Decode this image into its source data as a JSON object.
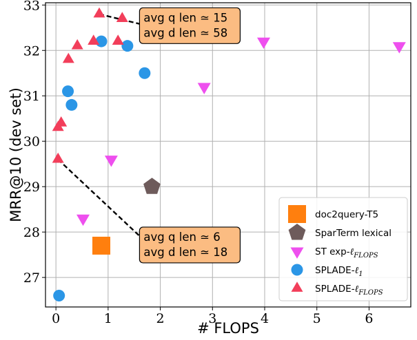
{
  "chart_data": {
    "type": "scatter",
    "xlabel": "# FLOPS",
    "ylabel": "MRR@10 (dev set)",
    "xlim": [
      -0.2,
      6.8
    ],
    "ylim": [
      26.35,
      33.05
    ],
    "xticks": [
      "0",
      "1",
      "2",
      "3",
      "4",
      "5",
      "6"
    ],
    "yticks": [
      "27",
      "28",
      "29",
      "30",
      "31",
      "32",
      "33"
    ],
    "grid": true,
    "legend_position": "bottom-right",
    "series": [
      {
        "name": "doc2query-T5",
        "marker": "square",
        "color": "#ff7f0e",
        "points": [
          {
            "x": 0.87,
            "y": 27.7
          }
        ]
      },
      {
        "name": "SparTerm lexical",
        "marker": "pentagon",
        "color": "#6e5b5b",
        "points": [
          {
            "x": 1.84,
            "y": 29.0
          }
        ]
      },
      {
        "name": "ST exp-ℓFLOPS",
        "marker": "triangle-down",
        "color": "#ee4fee",
        "points": [
          {
            "x": 0.52,
            "y": 28.3
          },
          {
            "x": 1.06,
            "y": 29.6
          },
          {
            "x": 2.84,
            "y": 31.2
          },
          {
            "x": 3.98,
            "y": 32.2
          },
          {
            "x": 6.58,
            "y": 32.1
          }
        ]
      },
      {
        "name": "SPLADE-ℓ1",
        "marker": "circle",
        "color": "#2b96e6",
        "points": [
          {
            "x": 0.06,
            "y": 26.6
          },
          {
            "x": 0.23,
            "y": 31.1
          },
          {
            "x": 0.3,
            "y": 30.8
          },
          {
            "x": 0.87,
            "y": 32.2
          },
          {
            "x": 1.37,
            "y": 32.1
          },
          {
            "x": 1.7,
            "y": 31.5
          }
        ]
      },
      {
        "name": "SPLADE-ℓFLOPS",
        "marker": "triangle-up",
        "color": "#f23e5a",
        "points": [
          {
            "x": 0.04,
            "y": 29.6
          },
          {
            "x": 0.04,
            "y": 30.3
          },
          {
            "x": 0.1,
            "y": 30.4
          },
          {
            "x": 0.24,
            "y": 31.8
          },
          {
            "x": 0.41,
            "y": 32.1
          },
          {
            "x": 0.72,
            "y": 32.2
          },
          {
            "x": 0.83,
            "y": 32.8
          },
          {
            "x": 1.19,
            "y": 32.2
          },
          {
            "x": 1.27,
            "y": 32.7
          }
        ]
      }
    ],
    "legend": [
      {
        "label": "doc2query-T5",
        "marker": "square",
        "color": "#ff7f0e"
      },
      {
        "label": "SparTerm lexical",
        "marker": "pentagon",
        "color": "#6e5b5b"
      },
      {
        "label": "ST exp-",
        "sub": "FLOPS",
        "marker": "triangle-down",
        "color": "#ee4fee"
      },
      {
        "label": "SPLADE-",
        "sub": "1",
        "marker": "circle",
        "color": "#2b96e6"
      },
      {
        "label": "SPLADE-",
        "sub": "FLOPS",
        "marker": "triangle-up",
        "color": "#f23e5a"
      }
    ],
    "annotations": [
      {
        "lines": [
          "avg q len ≃ 15",
          "avg d len ≃ 58"
        ],
        "from": {
          "x": 0.83,
          "y": 32.8
        },
        "to": {
          "x": 1.8,
          "y": 32.53
        }
      },
      {
        "lines": [
          "avg q len ≃ 6",
          "avg d len ≃ 18"
        ],
        "from": {
          "x": 0.04,
          "y": 29.6
        },
        "to": {
          "x": 1.8,
          "y": 27.7
        }
      }
    ]
  }
}
